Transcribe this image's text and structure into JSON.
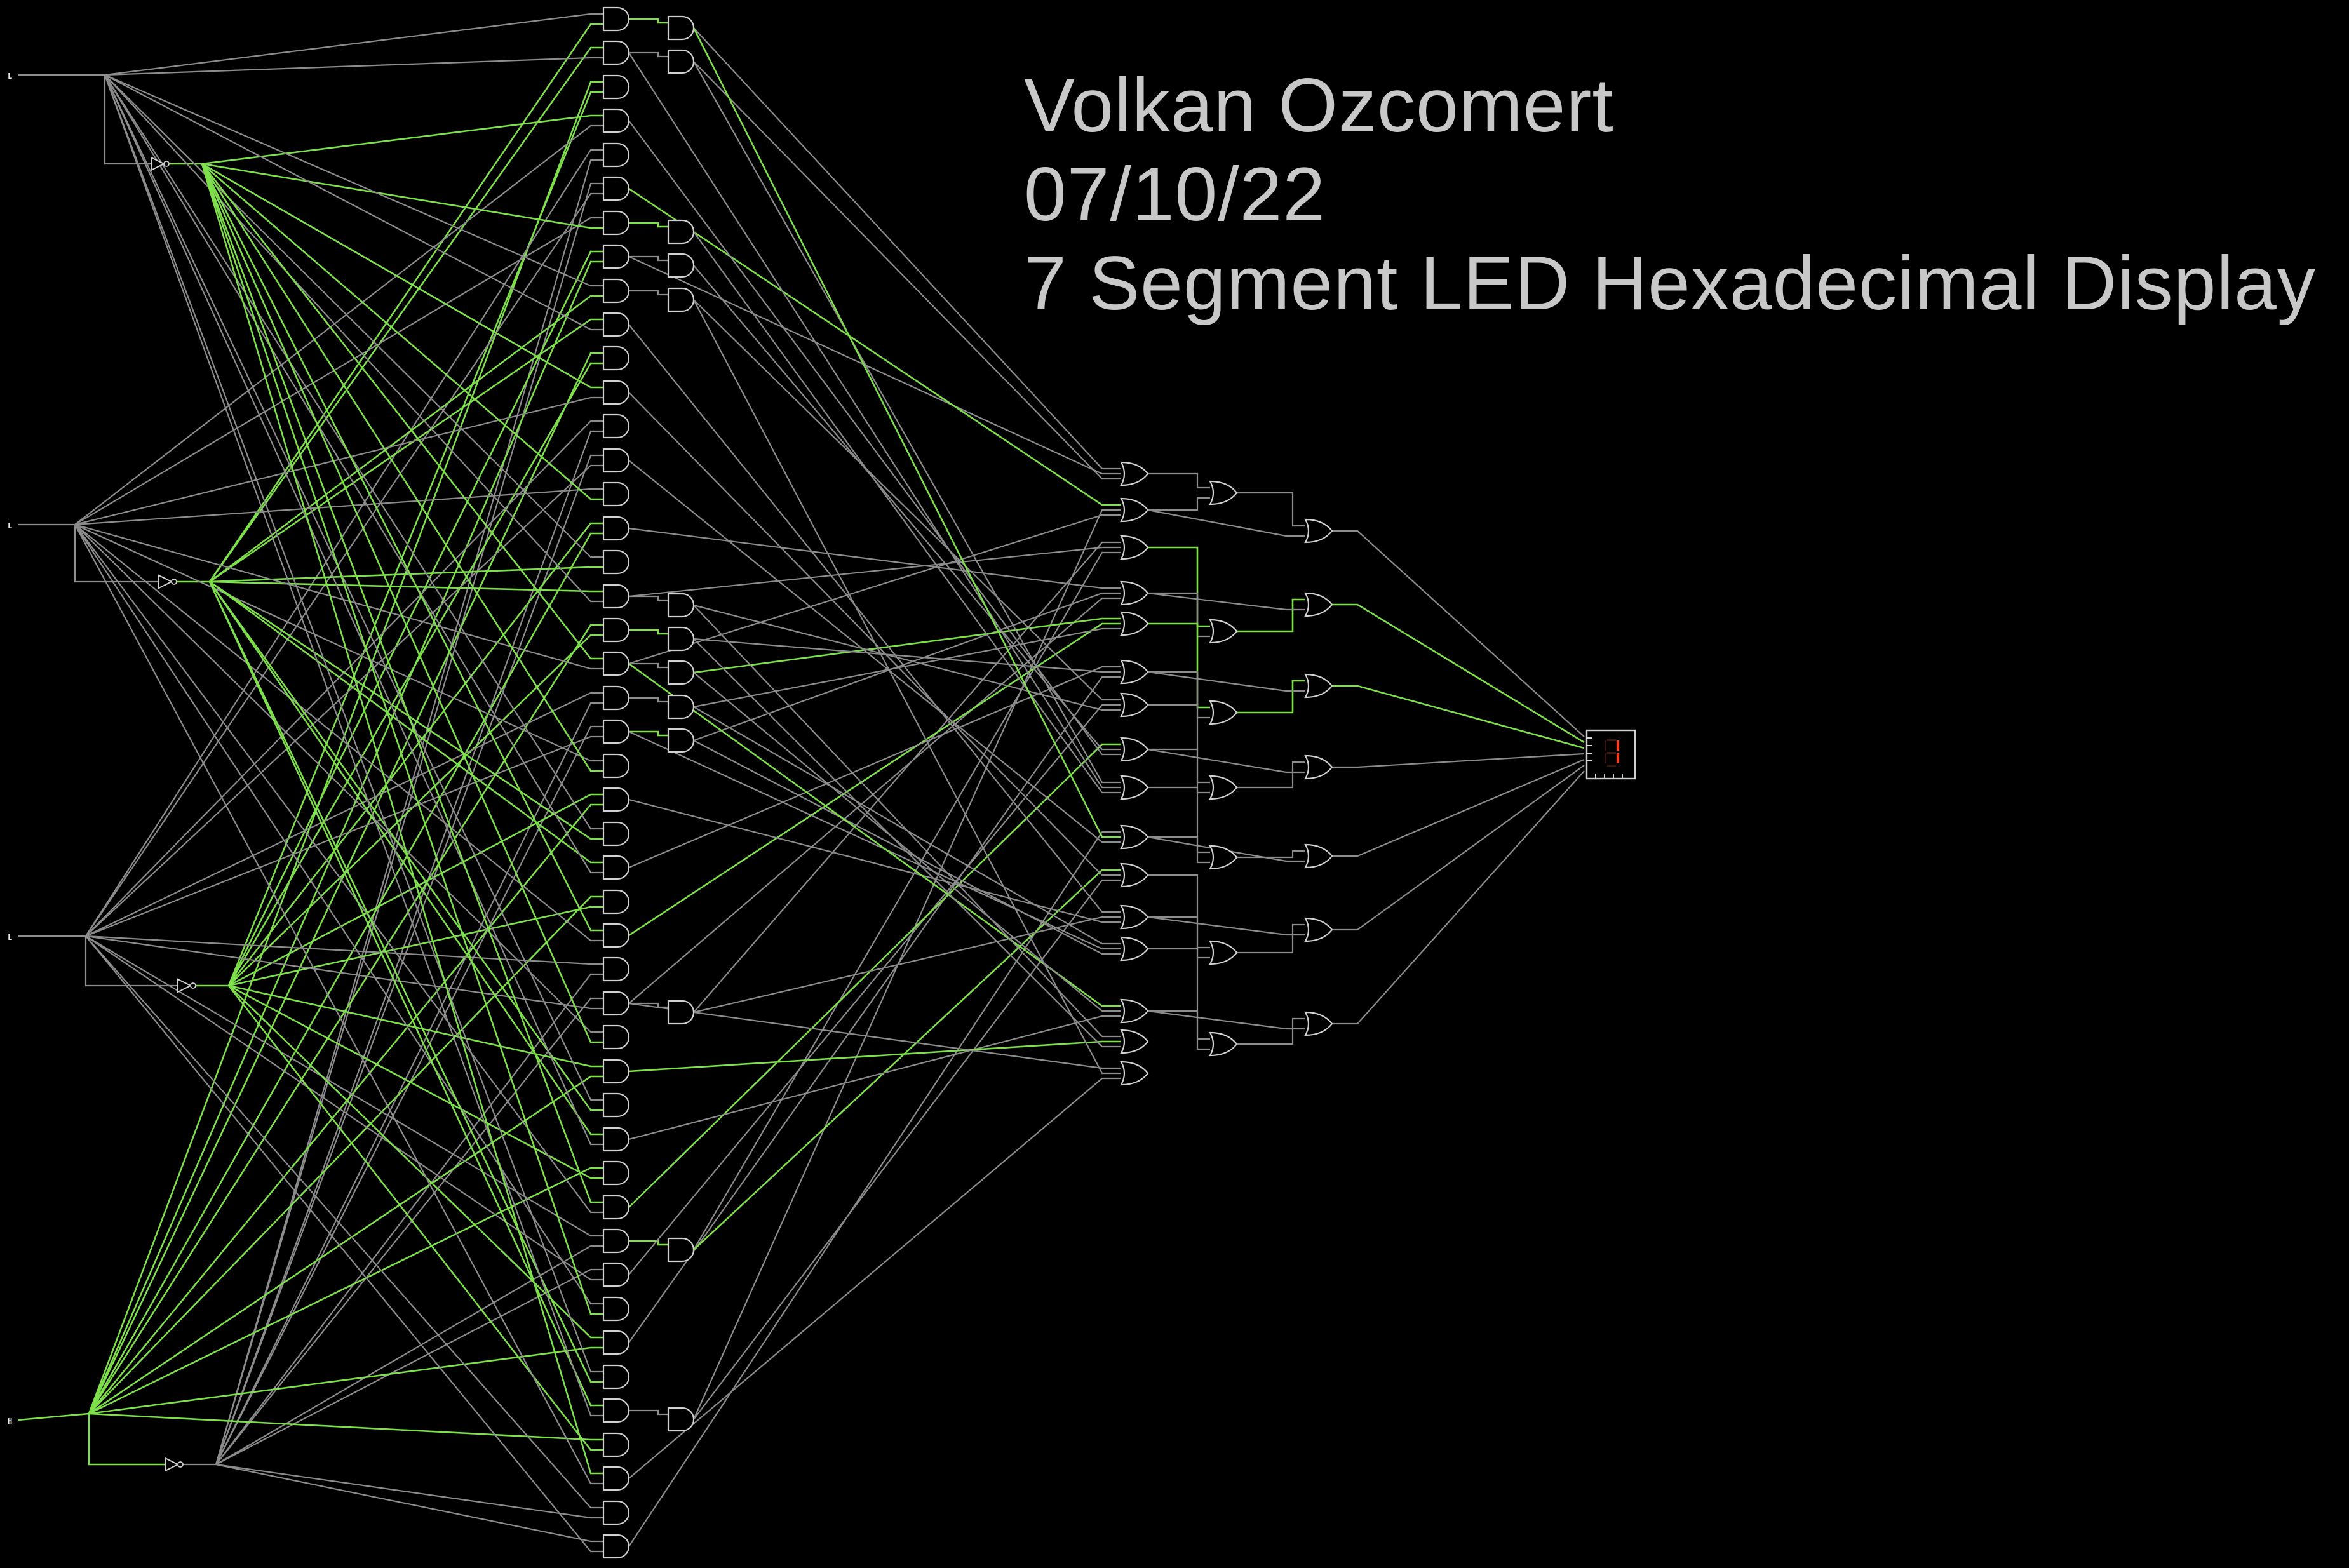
{
  "header": {
    "author": "Volkan Ozcomert",
    "date": "07/10/22",
    "title": "7 Segment LED Hexadecimal Display"
  },
  "inputs": [
    {
      "label": "L",
      "state": "low"
    },
    {
      "label": "L",
      "state": "low"
    },
    {
      "label": "L",
      "state": "low"
    },
    {
      "label": "H",
      "state": "high"
    }
  ],
  "display": {
    "lit_digit": "1",
    "segment_on_color": "#ff3b1f",
    "segment_off_color": "#3a1410"
  },
  "colors": {
    "background": "#000000",
    "wire_low": "#8c8c8c",
    "wire_high": "#7ee04a",
    "gate_stroke": "#d0d0d0",
    "title_text": "#c8c8c8"
  },
  "icons": {
    "input_switch": "input-switch-icon",
    "not_gate": "not-gate-icon",
    "and_gate": "and-gate-icon",
    "or_gate": "or-gate-icon",
    "seven_segment": "seven-segment-display-icon"
  }
}
